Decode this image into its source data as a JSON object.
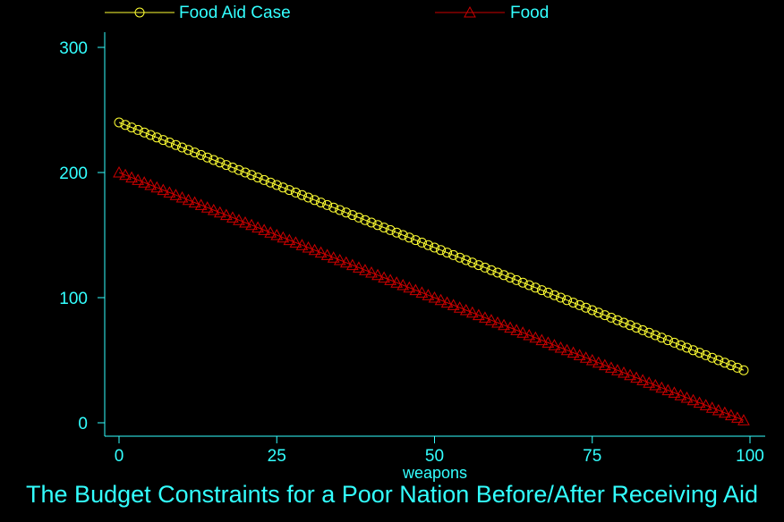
{
  "chart_data": {
    "type": "line",
    "title": "The Budget Constraints for a Poor Nation Before/After Receiving Aid",
    "xlabel": "weapons",
    "ylabel": "",
    "xlim": [
      0,
      100
    ],
    "ylim": [
      0,
      310
    ],
    "xticks": [
      0,
      25,
      50,
      75,
      100
    ],
    "yticks": [
      0,
      100,
      200,
      300
    ],
    "x": {
      "start": 0,
      "end": 99,
      "step": 1
    },
    "series": [
      {
        "name": "Food Aid Case",
        "marker": "circle",
        "color": "#ffff33",
        "intercept": 240,
        "slope": -2
      },
      {
        "name": "Food",
        "marker": "triangle",
        "color": "#cc0000",
        "intercept": 200,
        "slope": -2
      }
    ],
    "legend_position": "top",
    "grid": false
  },
  "colors": {
    "background": "#000000",
    "axis": "#33ffff",
    "text": "#33ffff"
  }
}
